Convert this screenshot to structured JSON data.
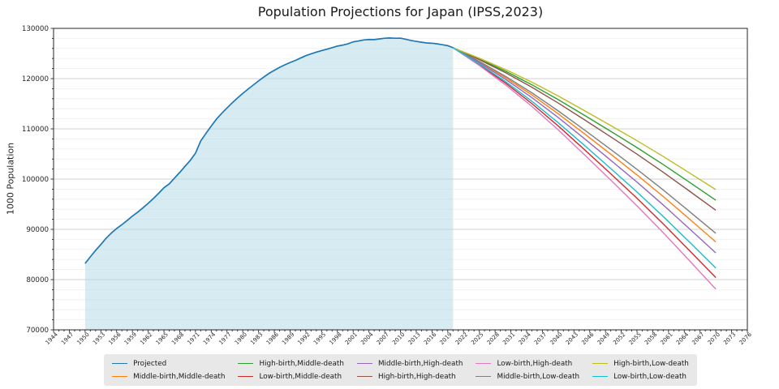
{
  "title": "Population Projections for Japan (IPSS,2023)",
  "y_axis": {
    "label": "1000 Population",
    "min": 70000,
    "max": 130000,
    "major_step": 10000,
    "minor_step": 2000,
    "tick_labels": [
      "70000",
      "80000",
      "90000",
      "100000",
      "110000",
      "120000",
      "130000"
    ]
  },
  "x_axis": {
    "min": 1944,
    "max": 2076,
    "major_step": 3,
    "minor_step": 1,
    "tick_labels": [
      "1944",
      "1947",
      "1950",
      "1953",
      "1956",
      "1959",
      "1962",
      "1965",
      "1968",
      "1971",
      "1974",
      "1977",
      "1980",
      "1983",
      "1986",
      "1989",
      "1992",
      "1995",
      "1998",
      "2001",
      "2004",
      "2007",
      "2010",
      "2013",
      "2016",
      "2019",
      "2022",
      "2025",
      "2028",
      "2031",
      "2034",
      "2037",
      "2040",
      "2043",
      "2046",
      "2049",
      "2052",
      "2055",
      "2058",
      "2061",
      "2064",
      "2067",
      "2070",
      "2073",
      "2076"
    ]
  },
  "chart_data": {
    "type": "line",
    "title": "Population Projections for Japan (IPSS,2023)",
    "xlabel": "",
    "ylabel": "1000 Population",
    "xlim": [
      1944,
      2076
    ],
    "ylim": [
      70000,
      130000
    ],
    "grid": "horizontal major+minor",
    "legend_position": "lower center",
    "historical": {
      "name": "Projected",
      "color": "#1f77b4",
      "fill_color": "#add8e6",
      "fill_opacity": 0.5,
      "fill_range": [
        1950,
        2020
      ],
      "years": [
        1950,
        1951,
        1952,
        1953,
        1954,
        1955,
        1956,
        1957,
        1958,
        1959,
        1960,
        1961,
        1962,
        1963,
        1964,
        1965,
        1966,
        1967,
        1968,
        1969,
        1970,
        1971,
        1972,
        1973,
        1974,
        1975,
        1976,
        1977,
        1978,
        1979,
        1980,
        1981,
        1982,
        1983,
        1984,
        1985,
        1986,
        1987,
        1988,
        1989,
        1990,
        1991,
        1992,
        1993,
        1994,
        1995,
        1996,
        1997,
        1998,
        1999,
        2000,
        2001,
        2002,
        2003,
        2004,
        2005,
        2006,
        2007,
        2008,
        2009,
        2010,
        2011,
        2012,
        2013,
        2014,
        2015,
        2016,
        2017,
        2018,
        2019,
        2020
      ],
      "values": [
        83200,
        84541,
        85808,
        86981,
        88239,
        89276,
        90172,
        90928,
        91767,
        92641,
        93419,
        94287,
        95181,
        96156,
        97182,
        98275,
        99036,
        100196,
        101331,
        102536,
        103720,
        105145,
        107595,
        109104,
        110573,
        111940,
        113094,
        114165,
        115190,
        116155,
        117060,
        117902,
        118728,
        119536,
        120305,
        121049,
        121660,
        122239,
        122745,
        123205,
        123611,
        124101,
        124567,
        124938,
        125265,
        125570,
        125859,
        126157,
        126472,
        126667,
        126926,
        127316,
        127486,
        127694,
        127787,
        127768,
        127901,
        128033,
        128084,
        128032,
        128057,
        127834,
        127593,
        127414,
        127237,
        127095,
        127042,
        126919,
        126749,
        126555,
        126146
      ]
    },
    "projection_years": [
      2020,
      2025,
      2030,
      2035,
      2040,
      2045,
      2050,
      2055,
      2060,
      2065,
      2070
    ],
    "projections": [
      {
        "name": "Middle-birth,Middle-death",
        "color": "#ff7f0e",
        "values": [
          126146,
          123298,
          120194,
          116763,
          113010,
          109026,
          104964,
          100840,
          96535,
          92040,
          87500
        ]
      },
      {
        "name": "High-birth,Middle-death",
        "color": "#2ca02c",
        "values": [
          126146,
          123909,
          121473,
          118778,
          115831,
          112703,
          109513,
          106275,
          102895,
          99365,
          95800
        ]
      },
      {
        "name": "Low-birth,Middle-death",
        "color": "#d62728",
        "values": [
          126146,
          122774,
          119101,
          115038,
          110595,
          105880,
          101072,
          96190,
          91094,
          85774,
          80400
        ]
      },
      {
        "name": "Middle-birth,High-death",
        "color": "#9467bd",
        "values": [
          126146,
          123136,
          119856,
          116229,
          112262,
          108051,
          103758,
          99400,
          94850,
          90099,
          85300
        ]
      },
      {
        "name": "High-birth,High-death",
        "color": "#8c564b",
        "values": [
          126146,
          123762,
          121165,
          118292,
          115151,
          111817,
          108417,
          104966,
          101362,
          97601,
          93800
        ]
      },
      {
        "name": "Low-birth,High-death",
        "color": "#e377c2",
        "values": [
          126146,
          122605,
          118747,
          114480,
          109814,
          104861,
          99812,
          94684,
          89333,
          83745,
          78100
        ]
      },
      {
        "name": "Middle-birth,Low-death",
        "color": "#7f7f7f",
        "values": [
          126146,
          123423,
          120456,
          117175,
          113588,
          109779,
          105895,
          101952,
          97838,
          93541,
          89200
        ]
      },
      {
        "name": "High-birth,Low-death",
        "color": "#bcbd22",
        "values": [
          126146,
          124064,
          121796,
          119288,
          116545,
          113633,
          110664,
          107650,
          104504,
          101217,
          97900
        ]
      },
      {
        "name": "Low-birth,Low-death",
        "color": "#17becf",
        "values": [
          126146,
          122914,
          119394,
          115500,
          111241,
          106722,
          102113,
          97435,
          92550,
          87452,
          82300
        ]
      }
    ],
    "legend_order": [
      "Projected",
      "Middle-birth,Middle-death",
      "High-birth,Middle-death",
      "Low-birth,Middle-death",
      "Middle-birth,High-death",
      "High-birth,High-death",
      "Low-birth,High-death",
      "Middle-birth,Low-death",
      "High-birth,Low-death",
      "Low-birth,Low-death"
    ],
    "legend_columns": 5
  },
  "style_colors": {
    "spine": "#262626",
    "tick_label": "#262626",
    "grid_major": "#d2d2d2",
    "grid_minor": "#efefef",
    "legend_bg": "#e8e8e8"
  }
}
